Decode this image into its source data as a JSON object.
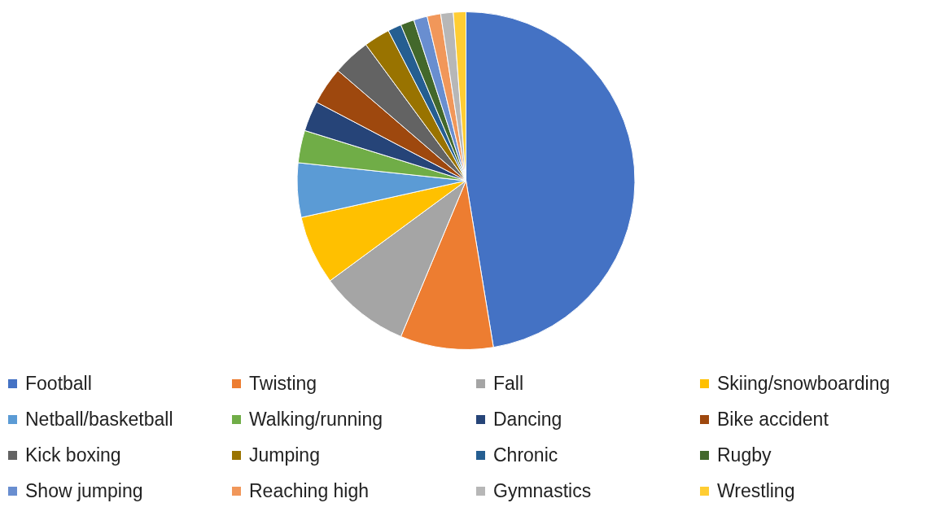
{
  "chart_data": {
    "type": "pie",
    "categories": [
      "Football",
      "Twisting",
      "Fall",
      "Skiing/snowboarding",
      "Netball/basketball",
      "Walking/running",
      "Dancing",
      "Bike accident",
      "Kick boxing",
      "Jumping",
      "Chronic",
      "Rugby",
      "Show jumping",
      "Reaching high",
      "Gymnastics",
      "Wrestling"
    ],
    "values": [
      47.4,
      8.9,
      8.6,
      6.6,
      5.2,
      3.1,
      2.9,
      3.6,
      3.6,
      2.5,
      1.3,
      1.3,
      1.3,
      1.3,
      1.2,
      1.2
    ],
    "colors": [
      "#4472c4",
      "#ed7d31",
      "#a5a5a5",
      "#ffc000",
      "#5b9bd5",
      "#70ad47",
      "#264478",
      "#9e480e",
      "#636363",
      "#997300",
      "#255e91",
      "#43682b",
      "#698ed0",
      "#f1975a",
      "#b7b7b7",
      "#ffcd33"
    ],
    "legend": "bottom"
  }
}
